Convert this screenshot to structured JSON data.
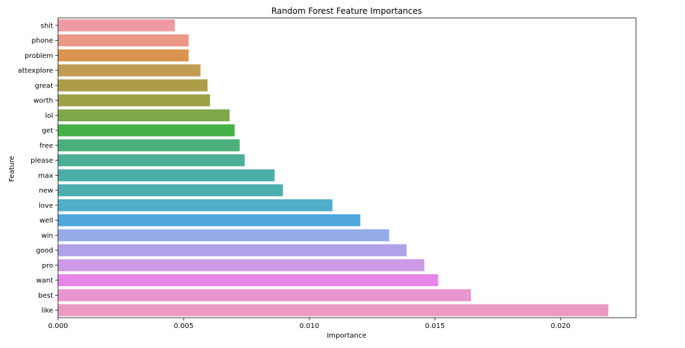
{
  "chart_data": {
    "type": "bar",
    "orientation": "horizontal",
    "title": "Random Forest Feature Importances",
    "xlabel": "Importance",
    "ylabel": "Feature",
    "xlim": [
      0,
      0.023
    ],
    "x_ticks": [
      0.0,
      0.005,
      0.01,
      0.015,
      0.02
    ],
    "x_tick_labels": [
      "0.000",
      "0.005",
      "0.010",
      "0.015",
      "0.020"
    ],
    "grid": false,
    "categories": [
      "shit",
      "phone",
      "problem",
      "attexplore",
      "great",
      "worth",
      "lol",
      "get",
      "free",
      "please",
      "max",
      "new",
      "love",
      "well",
      "win",
      "good",
      "pro",
      "want",
      "best",
      "like"
    ],
    "values": [
      0.00465,
      0.0052,
      0.0052,
      0.00567,
      0.00595,
      0.00605,
      0.00683,
      0.00703,
      0.00723,
      0.00743,
      0.00862,
      0.00895,
      0.01092,
      0.01203,
      0.01318,
      0.01387,
      0.01458,
      0.01513,
      0.01643,
      0.0219
    ],
    "colors": [
      "#ee9aa3",
      "#eb9886",
      "#db9350",
      "#c19c53",
      "#ad9d48",
      "#9ba147",
      "#7ea84a",
      "#45b148",
      "#4bb07b",
      "#4caf96",
      "#4cada6",
      "#4eadaf",
      "#50aeca",
      "#4fa7dc",
      "#95abe8",
      "#b0a1e8",
      "#cd9ae5",
      "#e686e8",
      "#e896cf",
      "#ea9ac0"
    ]
  }
}
